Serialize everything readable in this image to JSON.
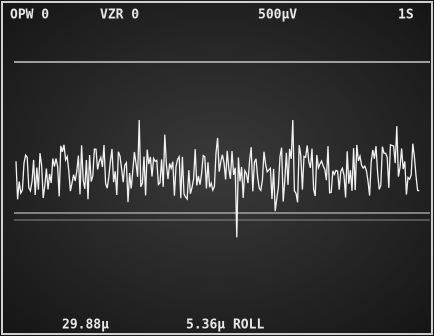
{
  "screen": {
    "top_left_1": "OPW 0",
    "top_left_2": "VZR 0",
    "top_center": "500µV",
    "top_right": "1S",
    "bottom_left": "29.88µ",
    "bottom_center": "5.36µ ROLL"
  }
}
